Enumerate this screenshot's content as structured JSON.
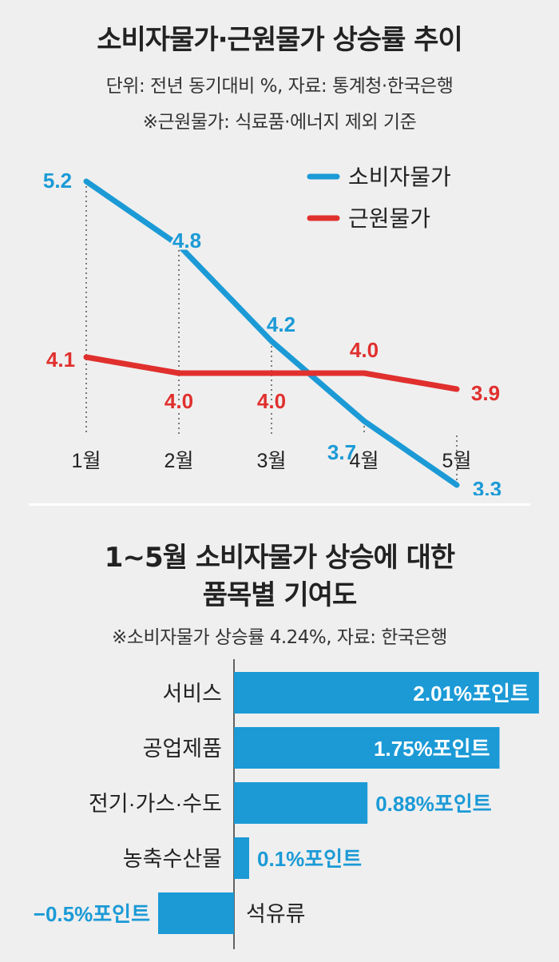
{
  "chart1": {
    "title": "소비자물가·근원물가 상승률 추이",
    "subtitle": "단위: 전년 동기대비 %, 자료: 통계청·한국은행",
    "note": "※근원물가: 식료품·에너지 제외 기준"
  },
  "chart2": {
    "title_line1": "1~5월 소비자물가 상승에 대한",
    "title_line2": "품목별 기여도",
    "note": "※소비자물가 상승률 4.24%, 자료: 한국은행"
  },
  "colors": {
    "blue": "#1b9ad6",
    "red": "#e0302e",
    "text": "#222222",
    "background": "#efefef"
  },
  "chart_data": [
    {
      "type": "line",
      "title": "소비자물가·근원물가 상승률 추이",
      "categories": [
        "1월",
        "2월",
        "3월",
        "4월",
        "5월"
      ],
      "series": [
        {
          "name": "소비자물가",
          "color": "#1b9ad6",
          "values": [
            5.2,
            4.8,
            4.2,
            3.7,
            3.3
          ],
          "labels": [
            "5.2",
            "4.8",
            "4.2",
            "3.7",
            "3.3"
          ]
        },
        {
          "name": "근원물가",
          "color": "#e0302e",
          "values": [
            4.1,
            4.0,
            4.0,
            4.0,
            3.9
          ],
          "labels": [
            "4.1",
            "4.0",
            "4.0",
            "4.0",
            "3.9"
          ]
        }
      ],
      "ylim": [
        3.0,
        5.5
      ],
      "legend": "top-right"
    },
    {
      "type": "bar",
      "orientation": "horizontal",
      "title": "1~5월 소비자물가 상승에 대한 품목별 기여도",
      "unit": "%포인트",
      "categories": [
        "서비스",
        "공업제품",
        "전기·가스·수도",
        "농축수산물",
        "석유류"
      ],
      "values": [
        2.01,
        1.75,
        0.88,
        0.1,
        -0.5
      ],
      "labels": [
        "2.01%포인트",
        "1.75%포인트",
        "0.88%포인트",
        "0.1%포인트",
        "−0.5%포인트"
      ],
      "color": "#1b9ad6"
    }
  ]
}
